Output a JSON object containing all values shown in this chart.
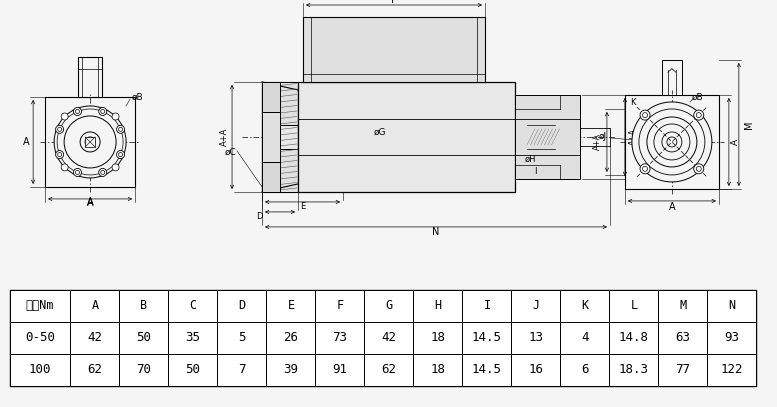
{
  "table_headers": [
    "量程Nm",
    "A",
    "B",
    "C",
    "D",
    "E",
    "F",
    "G",
    "H",
    "I",
    "J",
    "K",
    "L",
    "M",
    "N"
  ],
  "table_rows": [
    [
      "0-50",
      "42",
      "50",
      "35",
      "5",
      "26",
      "73",
      "42",
      "18",
      "14.5",
      "13",
      "4",
      "14.8",
      "63",
      "93"
    ],
    [
      "100",
      "62",
      "70",
      "50",
      "7",
      "39",
      "91",
      "62",
      "18",
      "14.5",
      "16",
      "6",
      "18.3",
      "77",
      "122"
    ]
  ],
  "bg_color": "#f5f5f5",
  "line_color": "#000000"
}
